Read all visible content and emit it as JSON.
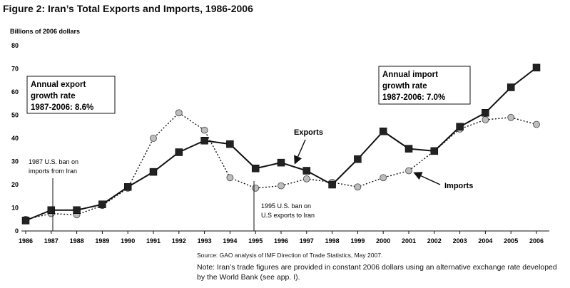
{
  "title": "Figure 2: Iran’s Total Exports and Imports, 1986-2006",
  "source": "Source: GAO analysis of IMF Direction of Trade Statistics, May 2007.",
  "note": "Note: Iran’s trade figures are provided in constant 2006 dollars using an alternative exchange rate developed by the World Bank (see app. I).",
  "annotations": {
    "export_box": [
      "Annual export",
      "growth rate",
      "1987-2006: 8.6%"
    ],
    "import_box": [
      "Annual import",
      "growth rate",
      "1987-2006: 7.0%"
    ],
    "ban_1987": [
      "1987 U.S. ban on",
      "imports from Iran"
    ],
    "ban_1995": [
      "1995 U.S. ban on",
      "U.S exports to Iran"
    ],
    "exports_label": "Exports",
    "imports_label": "Imports"
  },
  "colors": {
    "exports": "#222222",
    "imports": "#bdbdbd"
  },
  "chart_data": {
    "type": "line",
    "title": "Figure 2: Iran’s Total Exports and Imports, 1986-2006",
    "ylabel": "Billions of 2006 dollars",
    "xlabel": "",
    "x": [
      "1986",
      "1987",
      "1988",
      "1989",
      "1990",
      "1991",
      "1992",
      "1993",
      "1994",
      "1995",
      "1996",
      "1997",
      "1998",
      "1999",
      "2000",
      "2001",
      "2002",
      "2003",
      "2004",
      "2005",
      "2006"
    ],
    "yticks": [
      0,
      10,
      20,
      30,
      40,
      50,
      60,
      70,
      80
    ],
    "ylim": [
      0,
      80
    ],
    "grid": false,
    "series": [
      {
        "name": "Exports",
        "marker": "square",
        "line": "solid",
        "values": [
          4.5,
          9,
          9,
          11.5,
          19,
          25.5,
          34,
          39,
          37.5,
          27,
          29.5,
          26,
          20,
          31,
          43,
          35.5,
          34.5,
          45,
          51,
          62,
          70.5
        ]
      },
      {
        "name": "Imports",
        "marker": "circle",
        "line": "dotted",
        "values": [
          5,
          7.5,
          7,
          11,
          18.5,
          40,
          51,
          43.5,
          23,
          18.5,
          19.5,
          22.5,
          21,
          19,
          23,
          26,
          34.5,
          44,
          48,
          49,
          46
        ]
      }
    ]
  }
}
